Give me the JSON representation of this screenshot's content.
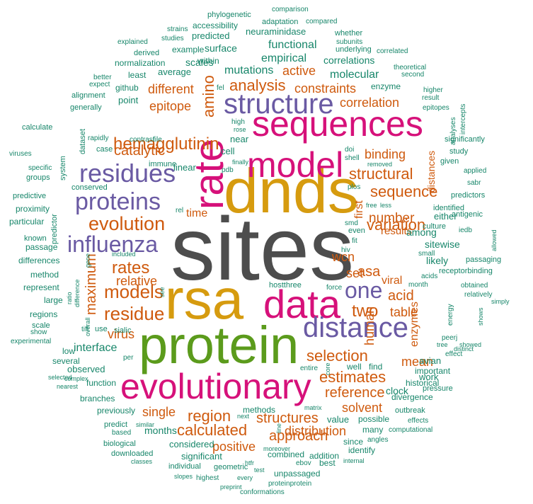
{
  "palette": {
    "dark": "#4d4d4d",
    "gold": "#d69b0f",
    "green": "#5b9b1c",
    "magenta": "#d6117a",
    "purple": "#6a5aa3",
    "orange": "#cf5a0e",
    "teal": "#17866a"
  },
  "words": [
    {
      "text": "sites",
      "color": "dark"
    },
    {
      "text": "dnds",
      "color": "gold"
    },
    {
      "text": "protein",
      "color": "green"
    },
    {
      "text": "rsa",
      "color": "gold"
    },
    {
      "text": "rate",
      "color": "magenta"
    },
    {
      "text": "sequences",
      "color": "magenta"
    },
    {
      "text": "model",
      "color": "magenta"
    },
    {
      "text": "data",
      "color": "magenta"
    },
    {
      "text": "evolutionary",
      "color": "magenta"
    },
    {
      "text": "distance",
      "color": "purple"
    },
    {
      "text": "structure",
      "color": "purple"
    },
    {
      "text": "residues",
      "color": "purple"
    },
    {
      "text": "proteins",
      "color": "purple"
    },
    {
      "text": "influenza",
      "color": "purple"
    },
    {
      "text": "one",
      "color": "purple"
    },
    {
      "text": "hemagglutinin",
      "color": "orange"
    },
    {
      "text": "evolution",
      "color": "orange"
    },
    {
      "text": "models",
      "color": "orange"
    },
    {
      "text": "residue",
      "color": "orange"
    },
    {
      "text": "rates",
      "color": "orange"
    },
    {
      "text": "catalytic",
      "color": "orange"
    },
    {
      "text": "amino",
      "color": "orange"
    },
    {
      "text": "analysis",
      "color": "orange"
    },
    {
      "text": "structural",
      "color": "orange"
    },
    {
      "text": "sequence",
      "color": "orange"
    },
    {
      "text": "variation",
      "color": "orange"
    },
    {
      "text": "number",
      "color": "orange"
    },
    {
      "text": "two",
      "color": "orange"
    },
    {
      "text": "selection",
      "color": "orange"
    },
    {
      "text": "calculated",
      "color": "orange"
    },
    {
      "text": "region",
      "color": "orange"
    },
    {
      "text": "estimates",
      "color": "orange"
    },
    {
      "text": "reference",
      "color": "orange"
    },
    {
      "text": "structures",
      "color": "orange"
    },
    {
      "text": "approach",
      "color": "orange"
    },
    {
      "text": "distribution",
      "color": "orange"
    },
    {
      "text": "positive",
      "color": "orange"
    },
    {
      "text": "solvent",
      "color": "orange"
    },
    {
      "text": "mean",
      "color": "orange"
    },
    {
      "text": "maximum",
      "color": "orange"
    },
    {
      "text": "relative",
      "color": "orange"
    },
    {
      "text": "asa",
      "color": "orange"
    },
    {
      "text": "acid",
      "color": "orange"
    },
    {
      "text": "table",
      "color": "orange"
    },
    {
      "text": "human",
      "color": "orange"
    },
    {
      "text": "enzymes",
      "color": "orange"
    },
    {
      "text": "binding",
      "color": "orange"
    },
    {
      "text": "results",
      "color": "orange"
    },
    {
      "text": "correlation",
      "color": "orange"
    },
    {
      "text": "constraints",
      "color": "orange"
    },
    {
      "text": "different",
      "color": "orange"
    },
    {
      "text": "epitope",
      "color": "orange"
    },
    {
      "text": "first",
      "color": "orange"
    },
    {
      "text": "set",
      "color": "orange"
    },
    {
      "text": "time",
      "color": "orange"
    },
    {
      "text": "virus",
      "color": "orange"
    },
    {
      "text": "wcn",
      "color": "orange"
    },
    {
      "text": "viral",
      "color": "orange"
    },
    {
      "text": "single",
      "color": "orange"
    },
    {
      "text": "distances",
      "color": "orange"
    },
    {
      "text": "active",
      "color": "orange"
    },
    {
      "text": "empirical",
      "color": "teal"
    },
    {
      "text": "functional",
      "color": "teal"
    },
    {
      "text": "mutations",
      "color": "teal"
    },
    {
      "text": "molecular",
      "color": "teal"
    },
    {
      "text": "correlations",
      "color": "teal"
    },
    {
      "text": "interface",
      "color": "teal"
    },
    {
      "text": "observed",
      "color": "teal"
    },
    {
      "text": "clock",
      "color": "teal"
    },
    {
      "text": "months",
      "color": "teal"
    },
    {
      "text": "considered",
      "color": "teal"
    },
    {
      "text": "significant",
      "color": "teal"
    },
    {
      "text": "value",
      "color": "teal"
    },
    {
      "text": "sitewise",
      "color": "teal"
    },
    {
      "text": "likely",
      "color": "teal"
    },
    {
      "text": "among",
      "color": "teal"
    },
    {
      "text": "either",
      "color": "teal"
    },
    {
      "text": "surface",
      "color": "teal"
    },
    {
      "text": "scales",
      "color": "teal"
    },
    {
      "text": "average",
      "color": "teal"
    },
    {
      "text": "neuraminidase",
      "color": "teal"
    },
    {
      "text": "predicted",
      "color": "teal"
    },
    {
      "text": "accessibility",
      "color": "teal"
    },
    {
      "text": "adaptation",
      "color": "teal"
    },
    {
      "text": "near",
      "color": "teal"
    },
    {
      "text": "cell",
      "color": "teal"
    },
    {
      "text": "linear",
      "color": "teal"
    },
    {
      "text": "immune",
      "color": "teal"
    },
    {
      "text": "conserved",
      "color": "teal"
    },
    {
      "text": "point",
      "color": "teal"
    },
    {
      "text": "github",
      "color": "teal"
    },
    {
      "text": "least",
      "color": "teal"
    },
    {
      "text": "normalization",
      "color": "teal"
    },
    {
      "text": "example",
      "color": "teal"
    },
    {
      "text": "within",
      "color": "teal"
    },
    {
      "text": "underlying",
      "color": "teal"
    },
    {
      "text": "enzyme",
      "color": "teal"
    },
    {
      "text": "work",
      "color": "teal"
    },
    {
      "text": "avian",
      "color": "teal"
    },
    {
      "text": "historical",
      "color": "teal"
    },
    {
      "text": "important",
      "color": "teal"
    },
    {
      "text": "divergence",
      "color": "teal"
    },
    {
      "text": "find",
      "color": "teal"
    },
    {
      "text": "well",
      "color": "teal"
    },
    {
      "text": "possible",
      "color": "teal"
    },
    {
      "text": "many",
      "color": "teal"
    },
    {
      "text": "since",
      "color": "teal"
    },
    {
      "text": "identify",
      "color": "teal"
    },
    {
      "text": "addition",
      "color": "teal"
    },
    {
      "text": "best",
      "color": "teal"
    },
    {
      "text": "unpassaged",
      "color": "teal"
    },
    {
      "text": "combined",
      "color": "teal"
    },
    {
      "text": "methods",
      "color": "teal"
    },
    {
      "text": "function",
      "color": "teal"
    },
    {
      "text": "branches",
      "color": "teal"
    },
    {
      "text": "previously",
      "color": "teal"
    },
    {
      "text": "several",
      "color": "teal"
    },
    {
      "text": "low",
      "color": "teal"
    },
    {
      "text": "regions",
      "color": "teal"
    },
    {
      "text": "large",
      "color": "teal"
    },
    {
      "text": "represent",
      "color": "teal"
    },
    {
      "text": "method",
      "color": "teal"
    },
    {
      "text": "differences",
      "color": "teal"
    },
    {
      "text": "passage",
      "color": "teal"
    },
    {
      "text": "known",
      "color": "teal"
    },
    {
      "text": "particular",
      "color": "teal"
    },
    {
      "text": "proximity",
      "color": "teal"
    },
    {
      "text": "predictive",
      "color": "teal"
    },
    {
      "text": "groups",
      "color": "teal"
    },
    {
      "text": "specific",
      "color": "teal"
    },
    {
      "text": "viruses",
      "color": "teal"
    },
    {
      "text": "calculate",
      "color": "teal"
    },
    {
      "text": "generally",
      "color": "teal"
    },
    {
      "text": "alignment",
      "color": "teal"
    },
    {
      "text": "expect",
      "color": "teal"
    },
    {
      "text": "better",
      "color": "teal"
    },
    {
      "text": "derived",
      "color": "teal"
    },
    {
      "text": "explained",
      "color": "teal"
    },
    {
      "text": "studies",
      "color": "teal"
    },
    {
      "text": "strains",
      "color": "teal"
    },
    {
      "text": "phylogenetic",
      "color": "teal"
    },
    {
      "text": "comparison",
      "color": "teal"
    },
    {
      "text": "compared",
      "color": "teal"
    },
    {
      "text": "whether",
      "color": "teal"
    },
    {
      "text": "subunits",
      "color": "teal"
    },
    {
      "text": "correlated",
      "color": "teal"
    },
    {
      "text": "theoretical",
      "color": "teal"
    },
    {
      "text": "second",
      "color": "teal"
    },
    {
      "text": "higher",
      "color": "teal"
    },
    {
      "text": "result",
      "color": "teal"
    },
    {
      "text": "epitopes",
      "color": "teal"
    },
    {
      "text": "analyses",
      "color": "teal"
    },
    {
      "text": "intercepts",
      "color": "teal"
    },
    {
      "text": "significantly",
      "color": "teal"
    },
    {
      "text": "study",
      "color": "teal"
    },
    {
      "text": "given",
      "color": "teal"
    },
    {
      "text": "applied",
      "color": "teal"
    },
    {
      "text": "sabr",
      "color": "teal"
    },
    {
      "text": "predictors",
      "color": "teal"
    },
    {
      "text": "antigenic",
      "color": "teal"
    },
    {
      "text": "identified",
      "color": "teal"
    },
    {
      "text": "culture",
      "color": "teal"
    },
    {
      "text": "iedb",
      "color": "teal"
    },
    {
      "text": "passaging",
      "color": "teal"
    },
    {
      "text": "receptorbinding",
      "color": "teal"
    },
    {
      "text": "allowed",
      "color": "teal"
    },
    {
      "text": "obtained",
      "color": "teal"
    },
    {
      "text": "relatively",
      "color": "teal"
    },
    {
      "text": "simply",
      "color": "teal"
    },
    {
      "text": "shows",
      "color": "teal"
    },
    {
      "text": "energy",
      "color": "teal"
    },
    {
      "text": "peerj",
      "color": "teal"
    },
    {
      "text": "distinct",
      "color": "teal"
    },
    {
      "text": "showed",
      "color": "teal"
    },
    {
      "text": "effect",
      "color": "teal"
    },
    {
      "text": "tree",
      "color": "teal"
    },
    {
      "text": "pressure",
      "color": "teal"
    },
    {
      "text": "outbreak",
      "color": "teal"
    },
    {
      "text": "effects",
      "color": "teal"
    },
    {
      "text": "computational",
      "color": "teal"
    },
    {
      "text": "angles",
      "color": "teal"
    },
    {
      "text": "internal",
      "color": "teal"
    },
    {
      "text": "ebov",
      "color": "teal"
    },
    {
      "text": "moreover",
      "color": "teal"
    },
    {
      "text": "htfr",
      "color": "teal"
    },
    {
      "text": "test",
      "color": "teal"
    },
    {
      "text": "proteinprotein",
      "color": "teal"
    },
    {
      "text": "conformations",
      "color": "teal"
    },
    {
      "text": "every",
      "color": "teal"
    },
    {
      "text": "preprint",
      "color": "teal"
    },
    {
      "text": "highest",
      "color": "teal"
    },
    {
      "text": "slopes",
      "color": "teal"
    },
    {
      "text": "geometric",
      "color": "teal"
    },
    {
      "text": "individual",
      "color": "teal"
    },
    {
      "text": "classes",
      "color": "teal"
    },
    {
      "text": "downloaded",
      "color": "teal"
    },
    {
      "text": "biological",
      "color": "teal"
    },
    {
      "text": "based",
      "color": "teal"
    },
    {
      "text": "predict",
      "color": "teal"
    },
    {
      "text": "similar",
      "color": "teal"
    },
    {
      "text": "complex",
      "color": "teal"
    },
    {
      "text": "nearest",
      "color": "teal"
    },
    {
      "text": "selected",
      "color": "teal"
    },
    {
      "text": "experimental",
      "color": "teal"
    },
    {
      "text": "show",
      "color": "teal"
    },
    {
      "text": "scale",
      "color": "teal"
    },
    {
      "text": "ratio",
      "color": "teal"
    },
    {
      "text": "difference",
      "color": "teal"
    },
    {
      "text": "overall",
      "color": "teal"
    },
    {
      "text": "gene",
      "color": "teal"
    },
    {
      "text": "included",
      "color": "teal"
    },
    {
      "text": "tiff",
      "color": "teal"
    },
    {
      "text": "use",
      "color": "teal"
    },
    {
      "text": "sialic",
      "color": "teal"
    },
    {
      "text": "per",
      "color": "teal"
    },
    {
      "text": "see",
      "color": "teal"
    },
    {
      "text": "predictor",
      "color": "teal"
    },
    {
      "text": "system",
      "color": "teal"
    },
    {
      "text": "dataset",
      "color": "teal"
    },
    {
      "text": "rapidly",
      "color": "teal"
    },
    {
      "text": "case",
      "color": "teal"
    },
    {
      "text": "contrast",
      "color": "teal"
    },
    {
      "text": "file",
      "color": "teal"
    },
    {
      "text": "rel",
      "color": "teal"
    },
    {
      "text": "pdb",
      "color": "teal"
    },
    {
      "text": "finally",
      "color": "teal"
    },
    {
      "text": "rose",
      "color": "teal"
    },
    {
      "text": "high",
      "color": "teal"
    },
    {
      "text": "fel",
      "color": "teal"
    },
    {
      "text": "doi",
      "color": "teal"
    },
    {
      "text": "shell",
      "color": "teal"
    },
    {
      "text": "removed",
      "color": "teal"
    },
    {
      "text": "plos",
      "color": "teal"
    },
    {
      "text": "free",
      "color": "teal"
    },
    {
      "text": "less",
      "color": "teal"
    },
    {
      "text": "smd",
      "color": "teal"
    },
    {
      "text": "even",
      "color": "teal"
    },
    {
      "text": "fit",
      "color": "teal"
    },
    {
      "text": "hiv",
      "color": "teal"
    },
    {
      "text": "small",
      "color": "teal"
    },
    {
      "text": "acids",
      "color": "teal"
    },
    {
      "text": "month",
      "color": "teal"
    },
    {
      "text": "hostthree",
      "color": "teal"
    },
    {
      "text": "force",
      "color": "teal"
    },
    {
      "text": "core",
      "color": "teal"
    },
    {
      "text": "entire",
      "color": "teal"
    },
    {
      "text": "matrix",
      "color": "teal"
    },
    {
      "text": "next",
      "color": "teal"
    },
    {
      "text": "line",
      "color": "teal"
    }
  ]
}
